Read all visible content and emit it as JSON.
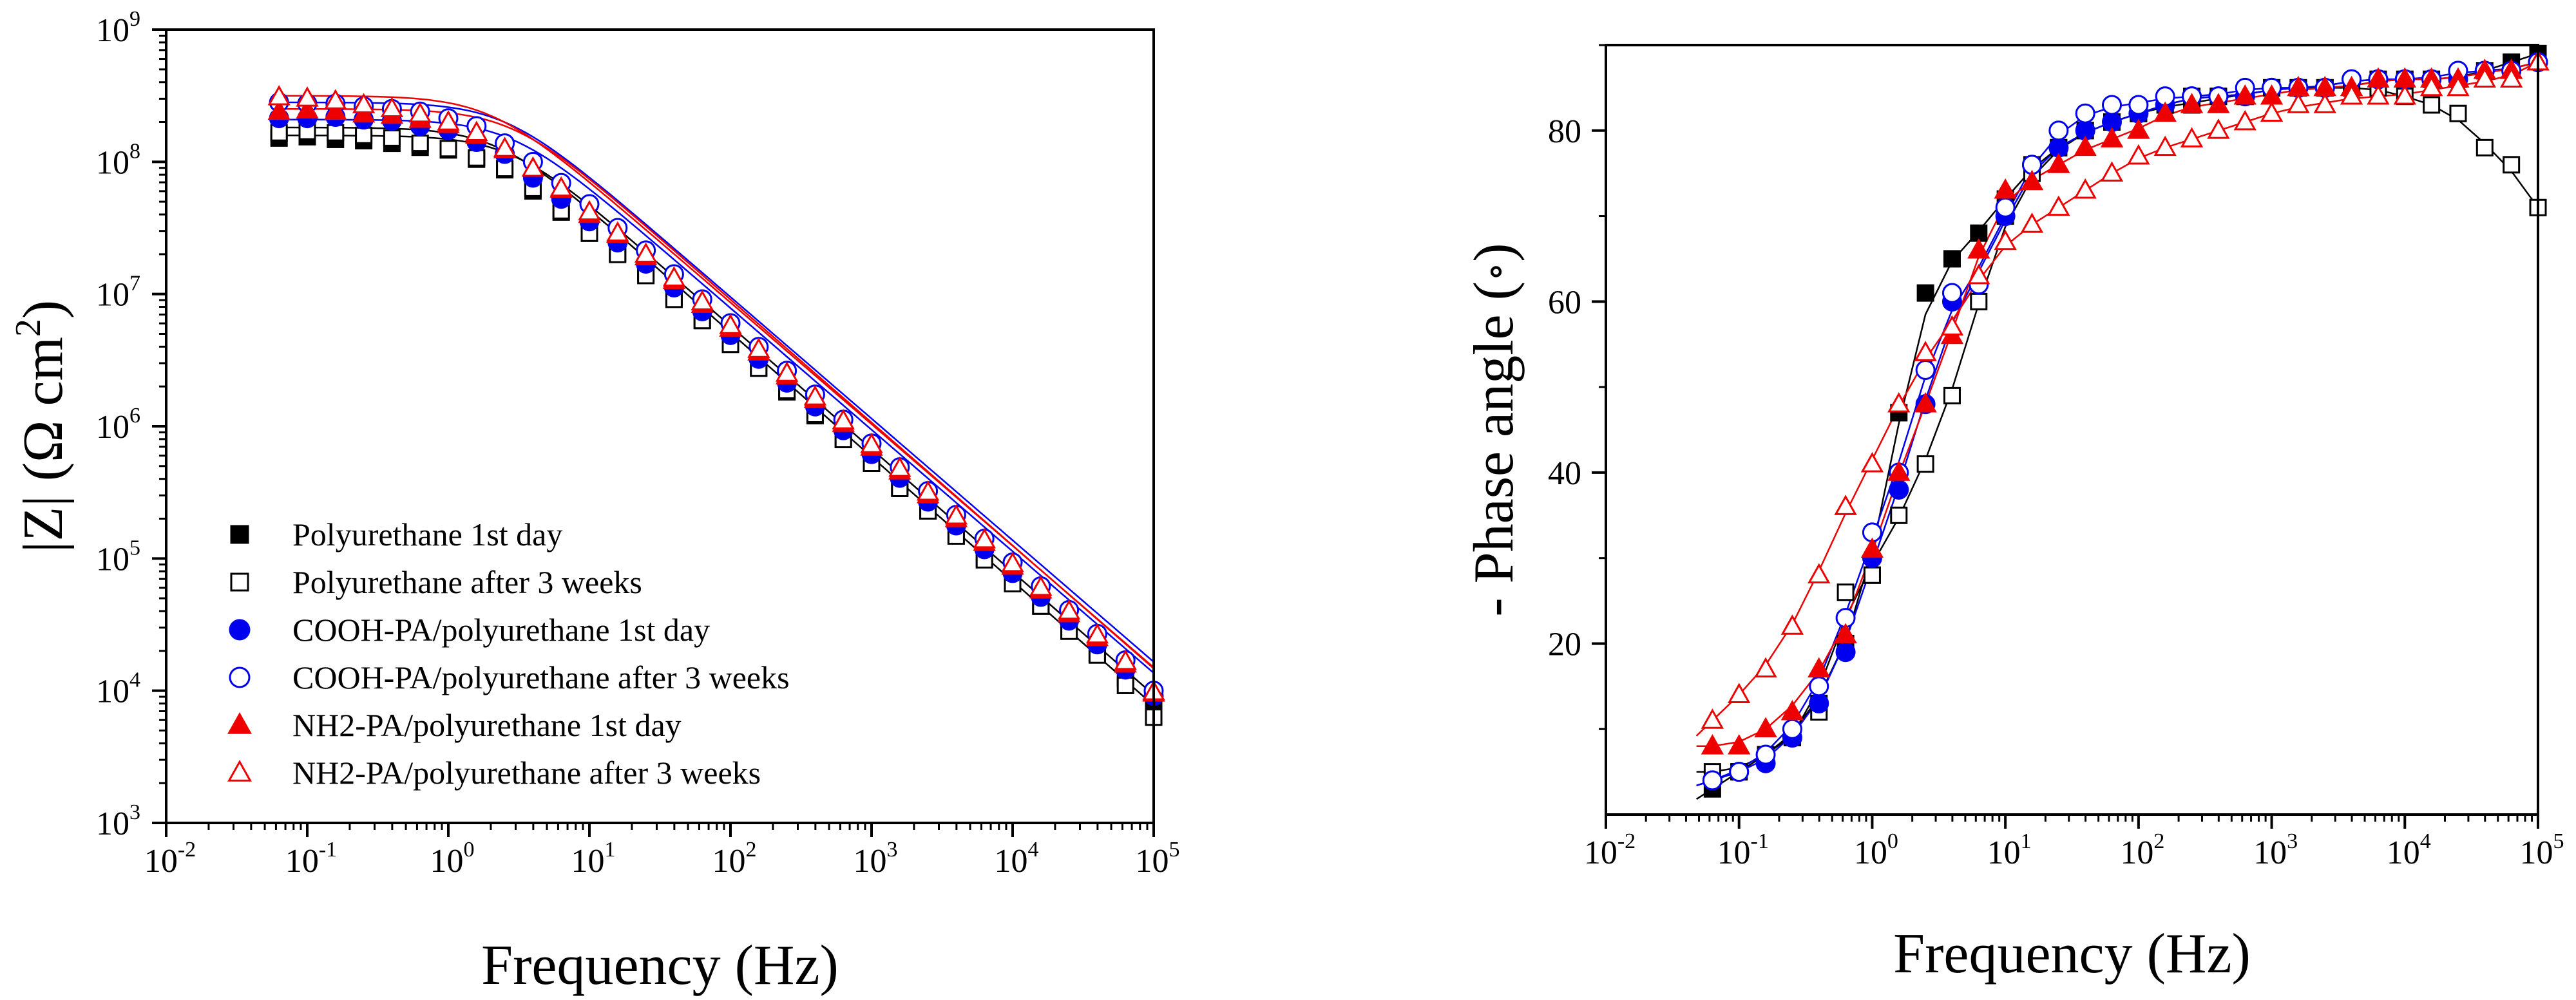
{
  "chart_data": [
    {
      "type": "scatter",
      "id": "bode-modulus",
      "title": "",
      "xlabel": "Frequency (Hz)",
      "ylabel": "|Z| (Ω cm²)",
      "ylabel_parts": {
        "main": "|Z| (Ω cm",
        "sup": "2",
        "tail": ")"
      },
      "x_scale": "log",
      "y_scale": "log",
      "xlim_exp": [
        -2,
        5
      ],
      "ylim_exp": [
        3,
        9
      ],
      "x_ticks": [
        {
          "base": "10",
          "exp": "-2"
        },
        {
          "base": "10",
          "exp": "-1"
        },
        {
          "base": "10",
          "exp": "0"
        },
        {
          "base": "10",
          "exp": "1"
        },
        {
          "base": "10",
          "exp": "2"
        },
        {
          "base": "10",
          "exp": "3"
        },
        {
          "base": "10",
          "exp": "4"
        },
        {
          "base": "10",
          "exp": "5"
        }
      ],
      "y_ticks": [
        {
          "base": "10",
          "exp": "3"
        },
        {
          "base": "10",
          "exp": "4"
        },
        {
          "base": "10",
          "exp": "5"
        },
        {
          "base": "10",
          "exp": "6"
        },
        {
          "base": "10",
          "exp": "7"
        },
        {
          "base": "10",
          "exp": "8"
        },
        {
          "base": "10",
          "exp": "9"
        }
      ],
      "legend_position": "lower-left",
      "x_log": [
        -1.2,
        -1.0,
        -0.8,
        -0.6,
        -0.4,
        -0.2,
        0.0,
        0.2,
        0.4,
        0.6,
        0.8,
        1.0,
        1.2,
        1.4,
        1.6,
        1.8,
        2.0,
        2.2,
        2.4,
        2.6,
        2.8,
        3.0,
        3.2,
        3.4,
        3.6,
        3.8,
        4.0,
        4.2,
        4.4,
        4.6,
        4.8,
        5.0
      ],
      "series": [
        {
          "name": "Polyurethane 1st day",
          "marker": "square",
          "filled": true,
          "color": "#000000",
          "fit": {
            "logR": 8.2,
            "fc_log": 0.45,
            "rolloff": 0.93
          },
          "log_values": [
            8.18,
            8.19,
            8.17,
            8.16,
            8.14,
            8.11,
            8.09,
            8.02,
            7.94,
            7.78,
            7.62,
            7.46,
            7.31,
            7.16,
            6.98,
            6.8,
            6.62,
            6.44,
            6.26,
            6.08,
            5.9,
            5.72,
            5.54,
            5.36,
            5.18,
            5.0,
            4.82,
            4.64,
            4.46,
            4.28,
            4.1,
            3.86
          ]
        },
        {
          "name": "Polyurethane after 3 weeks",
          "marker": "square",
          "filled": false,
          "color": "#000000",
          "fit": {
            "logR": 8.26,
            "fc_log": 0.35,
            "rolloff": 0.94
          },
          "log_values": [
            8.22,
            8.23,
            8.22,
            8.2,
            8.18,
            8.14,
            8.1,
            8.03,
            7.95,
            7.8,
            7.63,
            7.46,
            7.3,
            7.14,
            6.96,
            6.8,
            6.62,
            6.44,
            6.27,
            6.09,
            5.9,
            5.72,
            5.53,
            5.36,
            5.17,
            4.99,
            4.81,
            4.64,
            4.45,
            4.27,
            4.04,
            3.8
          ]
        },
        {
          "name": "COOH-PA/polyurethane 1st day",
          "marker": "circle",
          "filled": true,
          "color": "#0000ee",
          "fit": {
            "logR": 8.32,
            "fc_log": 0.45,
            "rolloff": 0.92
          },
          "log_values": [
            8.33,
            8.33,
            8.34,
            8.32,
            8.31,
            8.27,
            8.24,
            8.15,
            8.06,
            7.88,
            7.72,
            7.55,
            7.39,
            7.23,
            7.05,
            6.87,
            6.69,
            6.51,
            6.33,
            6.15,
            5.97,
            5.79,
            5.61,
            5.43,
            5.25,
            5.07,
            4.89,
            4.71,
            4.53,
            4.35,
            4.16,
            3.96
          ]
        },
        {
          "name": "COOH-PA/polyurethane after 3 weeks",
          "marker": "circle",
          "filled": false,
          "color": "#0000ee",
          "fit": {
            "logR": 8.45,
            "fc_log": 0.4,
            "rolloff": 0.92
          },
          "log_values": [
            8.45,
            8.44,
            8.44,
            8.42,
            8.4,
            8.38,
            8.33,
            8.27,
            8.14,
            8.0,
            7.84,
            7.68,
            7.5,
            7.33,
            7.15,
            6.96,
            6.78,
            6.6,
            6.42,
            6.24,
            6.05,
            5.87,
            5.69,
            5.51,
            5.33,
            5.15,
            4.97,
            4.79,
            4.61,
            4.43,
            4.23,
            4.0
          ]
        },
        {
          "name": "NH2-PA/polyurethane 1st day",
          "marker": "triangle",
          "filled": true,
          "color": "#ee0000",
          "fit": {
            "logR": 8.4,
            "fc_log": 0.45,
            "rolloff": 0.93
          },
          "log_values": [
            8.38,
            8.39,
            8.38,
            8.36,
            8.35,
            8.32,
            8.28,
            8.2,
            8.09,
            7.95,
            7.79,
            7.6,
            7.45,
            7.28,
            7.1,
            6.92,
            6.74,
            6.56,
            6.38,
            6.2,
            6.02,
            5.84,
            5.66,
            5.48,
            5.3,
            5.12,
            4.94,
            4.76,
            4.58,
            4.4,
            4.2,
            3.98
          ]
        },
        {
          "name": "NH2-PA/polyurethane after 3 weeks",
          "marker": "triangle",
          "filled": false,
          "color": "#ee0000",
          "fit": {
            "logR": 8.5,
            "fc_log": 0.3,
            "rolloff": 0.92
          },
          "log_values": [
            8.49,
            8.48,
            8.46,
            8.43,
            8.4,
            8.36,
            8.3,
            8.22,
            8.1,
            7.95,
            7.8,
            7.62,
            7.46,
            7.3,
            7.12,
            6.94,
            6.76,
            6.58,
            6.4,
            6.22,
            6.04,
            5.86,
            5.68,
            5.5,
            5.32,
            5.14,
            4.96,
            4.78,
            4.6,
            4.42,
            4.22,
            3.99
          ]
        }
      ]
    },
    {
      "type": "scatter",
      "id": "bode-phase",
      "title": "",
      "xlabel": "Frequency (Hz)",
      "ylabel": "- Phase angle (∘)",
      "ylabel_parts": {
        "main": "- Phase angle (",
        "circ": "∘",
        "tail": ")"
      },
      "x_scale": "log",
      "y_scale": "linear",
      "xlim_exp": [
        -2,
        5
      ],
      "ylim": [
        0,
        90
      ],
      "x_ticks": [
        {
          "base": "10",
          "exp": "-2"
        },
        {
          "base": "10",
          "exp": "-1"
        },
        {
          "base": "10",
          "exp": "0"
        },
        {
          "base": "10",
          "exp": "1"
        },
        {
          "base": "10",
          "exp": "2"
        },
        {
          "base": "10",
          "exp": "3"
        },
        {
          "base": "10",
          "exp": "4"
        },
        {
          "base": "10",
          "exp": "5"
        }
      ],
      "y_ticks": [
        "20",
        "40",
        "60",
        "80"
      ],
      "x_log": [
        -1.2,
        -1.0,
        -0.8,
        -0.6,
        -0.4,
        -0.2,
        0.0,
        0.2,
        0.4,
        0.6,
        0.8,
        1.0,
        1.2,
        1.4,
        1.6,
        1.8,
        2.0,
        2.2,
        2.4,
        2.6,
        2.8,
        3.0,
        3.2,
        3.4,
        3.6,
        3.8,
        4.0,
        4.2,
        4.4,
        4.6,
        4.8,
        5.0
      ],
      "series": [
        {
          "name": "Polyurethane 1st day",
          "marker": "square",
          "filled": true,
          "color": "#000000",
          "log_values": [
            3,
            5,
            7,
            9,
            13,
            20,
            28,
            47,
            61,
            65,
            68,
            72,
            76,
            78,
            80,
            81,
            82,
            83,
            83,
            84,
            84,
            85,
            85,
            85,
            85,
            86,
            86,
            86,
            86,
            87,
            88,
            89
          ]
        },
        {
          "name": "Polyurethane after 3 weeks",
          "marker": "square",
          "filled": false,
          "color": "#000000",
          "log_values": [
            5,
            5,
            7,
            9,
            12,
            26,
            28,
            35,
            41,
            49,
            60,
            70,
            75,
            78,
            80,
            81,
            82,
            83,
            84,
            84,
            84,
            85,
            85,
            85,
            85,
            85,
            84,
            83,
            82,
            78,
            76,
            71
          ]
        },
        {
          "name": "COOH-PA/polyurethane 1st day",
          "marker": "circle",
          "filled": true,
          "color": "#0000ee",
          "log_values": [
            4,
            5,
            6,
            9,
            13,
            19,
            30,
            38,
            48,
            60,
            62,
            70,
            76,
            78,
            80,
            81,
            82,
            83,
            84,
            84,
            84,
            85,
            85,
            85,
            86,
            86,
            86,
            86,
            86,
            87,
            87,
            88
          ]
        },
        {
          "name": "COOH-PA/polyurethane after 3 weeks",
          "marker": "circle",
          "filled": false,
          "color": "#0000ee",
          "log_values": [
            4,
            5,
            7,
            10,
            15,
            23,
            33,
            40,
            52,
            61,
            62,
            71,
            76,
            80,
            82,
            83,
            83,
            84,
            84,
            84,
            85,
            85,
            85,
            85,
            86,
            86,
            86,
            86,
            87,
            87,
            87,
            88
          ]
        },
        {
          "name": "NH2-PA/polyurethane 1st day",
          "marker": "triangle",
          "filled": true,
          "color": "#ee0000",
          "log_values": [
            8,
            8,
            10,
            12,
            17,
            21,
            31,
            40,
            48,
            56,
            66,
            73,
            74,
            76,
            78,
            79,
            80,
            82,
            83,
            83,
            84,
            84,
            85,
            85,
            85,
            86,
            86,
            86,
            86,
            87,
            87,
            88
          ]
        },
        {
          "name": "NH2-PA/polyurethane after 3 weeks",
          "marker": "triangle",
          "filled": false,
          "color": "#ee0000",
          "log_values": [
            11,
            14,
            17,
            22,
            28,
            36,
            41,
            48,
            54,
            57,
            63,
            67,
            69,
            71,
            73,
            75,
            77,
            78,
            79,
            80,
            81,
            82,
            83,
            83,
            84,
            84,
            84,
            85,
            85,
            86,
            86,
            88
          ]
        }
      ]
    }
  ]
}
